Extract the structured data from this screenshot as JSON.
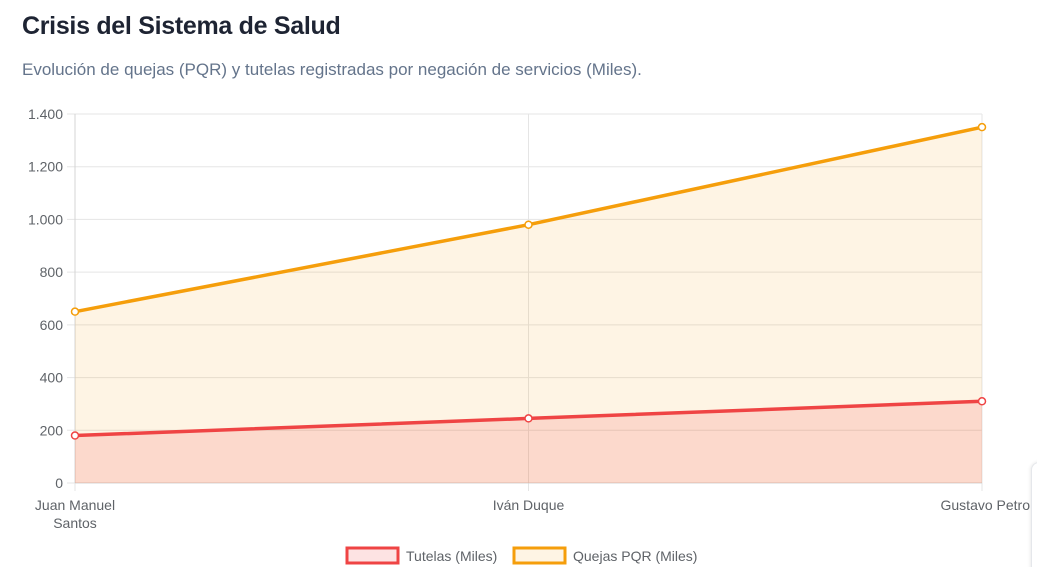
{
  "header": {
    "title": "Crisis del Sistema de Salud",
    "subtitle": "Evolución de quejas (PQR) y tutelas registradas por negación de servicios (Miles)."
  },
  "chart_data": {
    "type": "area",
    "categories": [
      [
        "Juan Manuel",
        "Santos"
      ],
      [
        "Iván Duque"
      ],
      [
        "Gustavo Petro"
      ]
    ],
    "series": [
      {
        "name": "Tutelas (Miles)",
        "values": [
          180,
          245,
          310
        ],
        "color": "#ef4444",
        "fill": "rgba(239,68,68,0.15)"
      },
      {
        "name": "Quejas PQR (Miles)",
        "values": [
          650,
          980,
          1350
        ],
        "color": "#f59e0b",
        "fill": "rgba(245,158,11,0.11)"
      }
    ],
    "ylim": [
      0,
      1400
    ],
    "yticks": [
      0,
      200,
      400,
      600,
      800,
      1000,
      1200,
      1400
    ],
    "ytick_labels": [
      "0",
      "200",
      "400",
      "600",
      "800",
      "1.000",
      "1.200",
      "1.400"
    ],
    "grid": true,
    "legend_position": "bottom"
  }
}
